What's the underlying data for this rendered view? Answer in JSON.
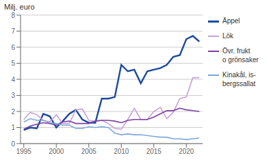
{
  "chart_data": {
    "type": "line",
    "y_label": "Milj. euro",
    "x": [
      1995,
      1996,
      1997,
      1998,
      1999,
      2000,
      2001,
      2002,
      2003,
      2004,
      2005,
      2006,
      2007,
      2008,
      2009,
      2010,
      2011,
      2012,
      2013,
      2014,
      2015,
      2016,
      2017,
      2018,
      2019,
      2020,
      2021,
      2022
    ],
    "xlim": [
      1994.5,
      2022.5
    ],
    "xticks": [
      1995,
      2000,
      2005,
      2010,
      2015,
      2020
    ],
    "ylim": [
      0,
      8
    ],
    "yticks": [
      0,
      1,
      2,
      3,
      4,
      5,
      6,
      7,
      8
    ],
    "grid": true,
    "legend": "right",
    "series": [
      {
        "name": "Äppel",
        "color": "#1a4a9e",
        "values": [
          0.85,
          1.0,
          0.95,
          1.85,
          1.7,
          1.0,
          1.4,
          1.85,
          2.1,
          1.5,
          1.3,
          1.3,
          2.8,
          2.8,
          2.9,
          4.9,
          4.5,
          4.6,
          3.75,
          4.5,
          4.6,
          4.7,
          4.9,
          5.4,
          5.5,
          6.5,
          6.7,
          6.35
        ]
      },
      {
        "name": "Lök",
        "color": "#c9a0dc",
        "values": [
          1.5,
          1.95,
          1.8,
          1.45,
          1.35,
          1.8,
          1.25,
          1.25,
          2.1,
          2.15,
          1.45,
          1.4,
          1.45,
          1.25,
          0.95,
          0.9,
          1.5,
          2.2,
          1.5,
          1.5,
          2.0,
          2.25,
          1.55,
          1.95,
          2.8,
          2.9,
          4.1,
          4.1
        ]
      },
      {
        "name": "Övr. frukt\no grönsaker",
        "color": "#7b3fa0",
        "values": [
          0.9,
          1.1,
          1.2,
          1.3,
          1.25,
          1.15,
          1.35,
          1.4,
          1.25,
          1.25,
          1.25,
          1.4,
          1.45,
          1.45,
          1.4,
          1.3,
          1.45,
          1.5,
          1.5,
          1.5,
          1.65,
          1.85,
          2.05,
          2.05,
          2.2,
          2.1,
          2.05,
          2.0
        ]
      },
      {
        "name": "Kinakål, is-\nbergssallat",
        "color": "#7da7d9",
        "values": [
          1.35,
          1.55,
          1.45,
          1.45,
          1.3,
          1.25,
          1.15,
          1.15,
          0.95,
          0.95,
          1.05,
          1.0,
          1.05,
          1.0,
          0.65,
          0.55,
          0.6,
          0.55,
          0.55,
          0.5,
          0.45,
          0.4,
          0.4,
          0.3,
          0.3,
          0.25,
          0.3,
          0.35
        ]
      }
    ]
  }
}
